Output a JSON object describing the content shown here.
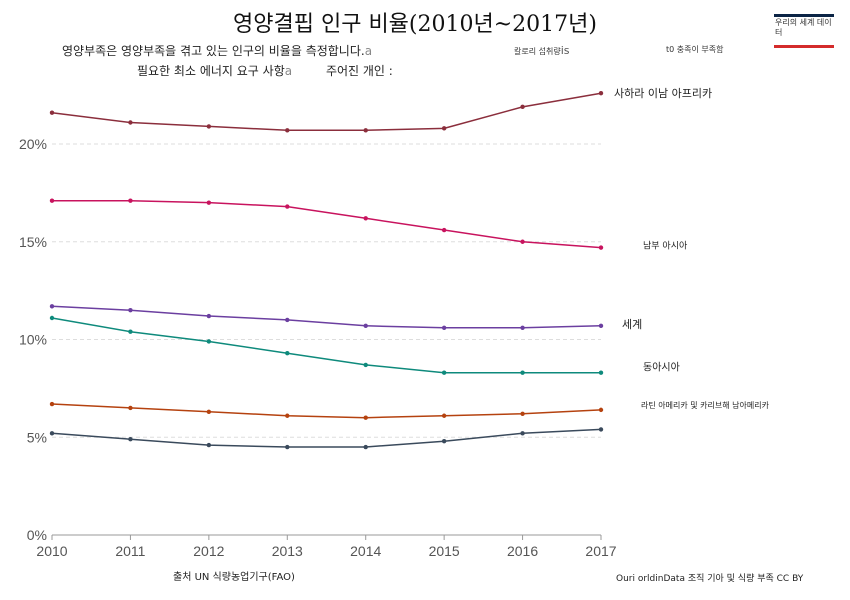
{
  "title": "영양결핍 인구 비율(2010년~2017년)",
  "subtitle_line1": "영양부족은 영양부족을 겪고 있는 인구의 비율을 측정합니다.",
  "subtitle_line1_suffix": "a",
  "subtitle_line2": "필요한 최소 에너지 요구 사항",
  "subtitle_line2_suffix": "a",
  "subtitle_line2_b": "주어진 개인 :",
  "subtitle_note1": "칼로리 섭취량",
  "subtitle_note1_suffix": "is",
  "subtitle_note2": "t0 충족이 부족함",
  "logo_text": "우리의 세계 데이터",
  "footer_source": "출처 UN 식량농업기구(FAO)",
  "footer_credit": "Ouri orldinData 조직 기아 및 식량 부족 CC BY",
  "colors": {
    "grid": "#dddddd",
    "axis": "#999999"
  },
  "chart_data": {
    "type": "line",
    "title": "영양결핍 인구 비율(2010년~2017년)",
    "x": [
      2010,
      2011,
      2012,
      2013,
      2014,
      2015,
      2016,
      2017
    ],
    "x_tick_labels": [
      "2010",
      "2011",
      "2012",
      "2013",
      "2014",
      "2015",
      "2016",
      "2017"
    ],
    "y_tick_labels": [
      "0%",
      "5%",
      "10%",
      "15%",
      "20%"
    ],
    "y_ticks": [
      0,
      5,
      10,
      15,
      20
    ],
    "xlim": [
      2010,
      2017
    ],
    "ylim": [
      0,
      23
    ],
    "grid": "horizontal dashed",
    "legend": "labels at line ends (right)",
    "series": [
      {
        "name": "사하라 이남 아프리카",
        "color": "#8b2e3c",
        "values": [
          21.6,
          21.1,
          20.9,
          20.7,
          20.7,
          20.8,
          21.9,
          22.6
        ]
      },
      {
        "name": "남부 아시아",
        "color": "#c8135e",
        "values": [
          17.1,
          17.1,
          17.0,
          16.8,
          16.2,
          15.6,
          15.0,
          14.7
        ]
      },
      {
        "name": "세계",
        "color": "#6b3fa0",
        "values": [
          11.7,
          11.5,
          11.2,
          11.0,
          10.7,
          10.6,
          10.6,
          10.7
        ]
      },
      {
        "name": "동아시아",
        "color": "#0e8a7c",
        "values": [
          11.1,
          10.4,
          9.9,
          9.3,
          8.7,
          8.3,
          8.3,
          8.3
        ]
      },
      {
        "name": "라틴 아메리카 및 카리브해 남아메리카",
        "color": "#b5420f",
        "values": [
          6.7,
          6.5,
          6.3,
          6.1,
          6.0,
          6.1,
          6.2,
          6.4
        ]
      },
      {
        "name": "",
        "color": "#3a4a5c",
        "values": [
          5.2,
          4.9,
          4.6,
          4.5,
          4.5,
          4.8,
          5.2,
          5.4
        ]
      }
    ]
  }
}
